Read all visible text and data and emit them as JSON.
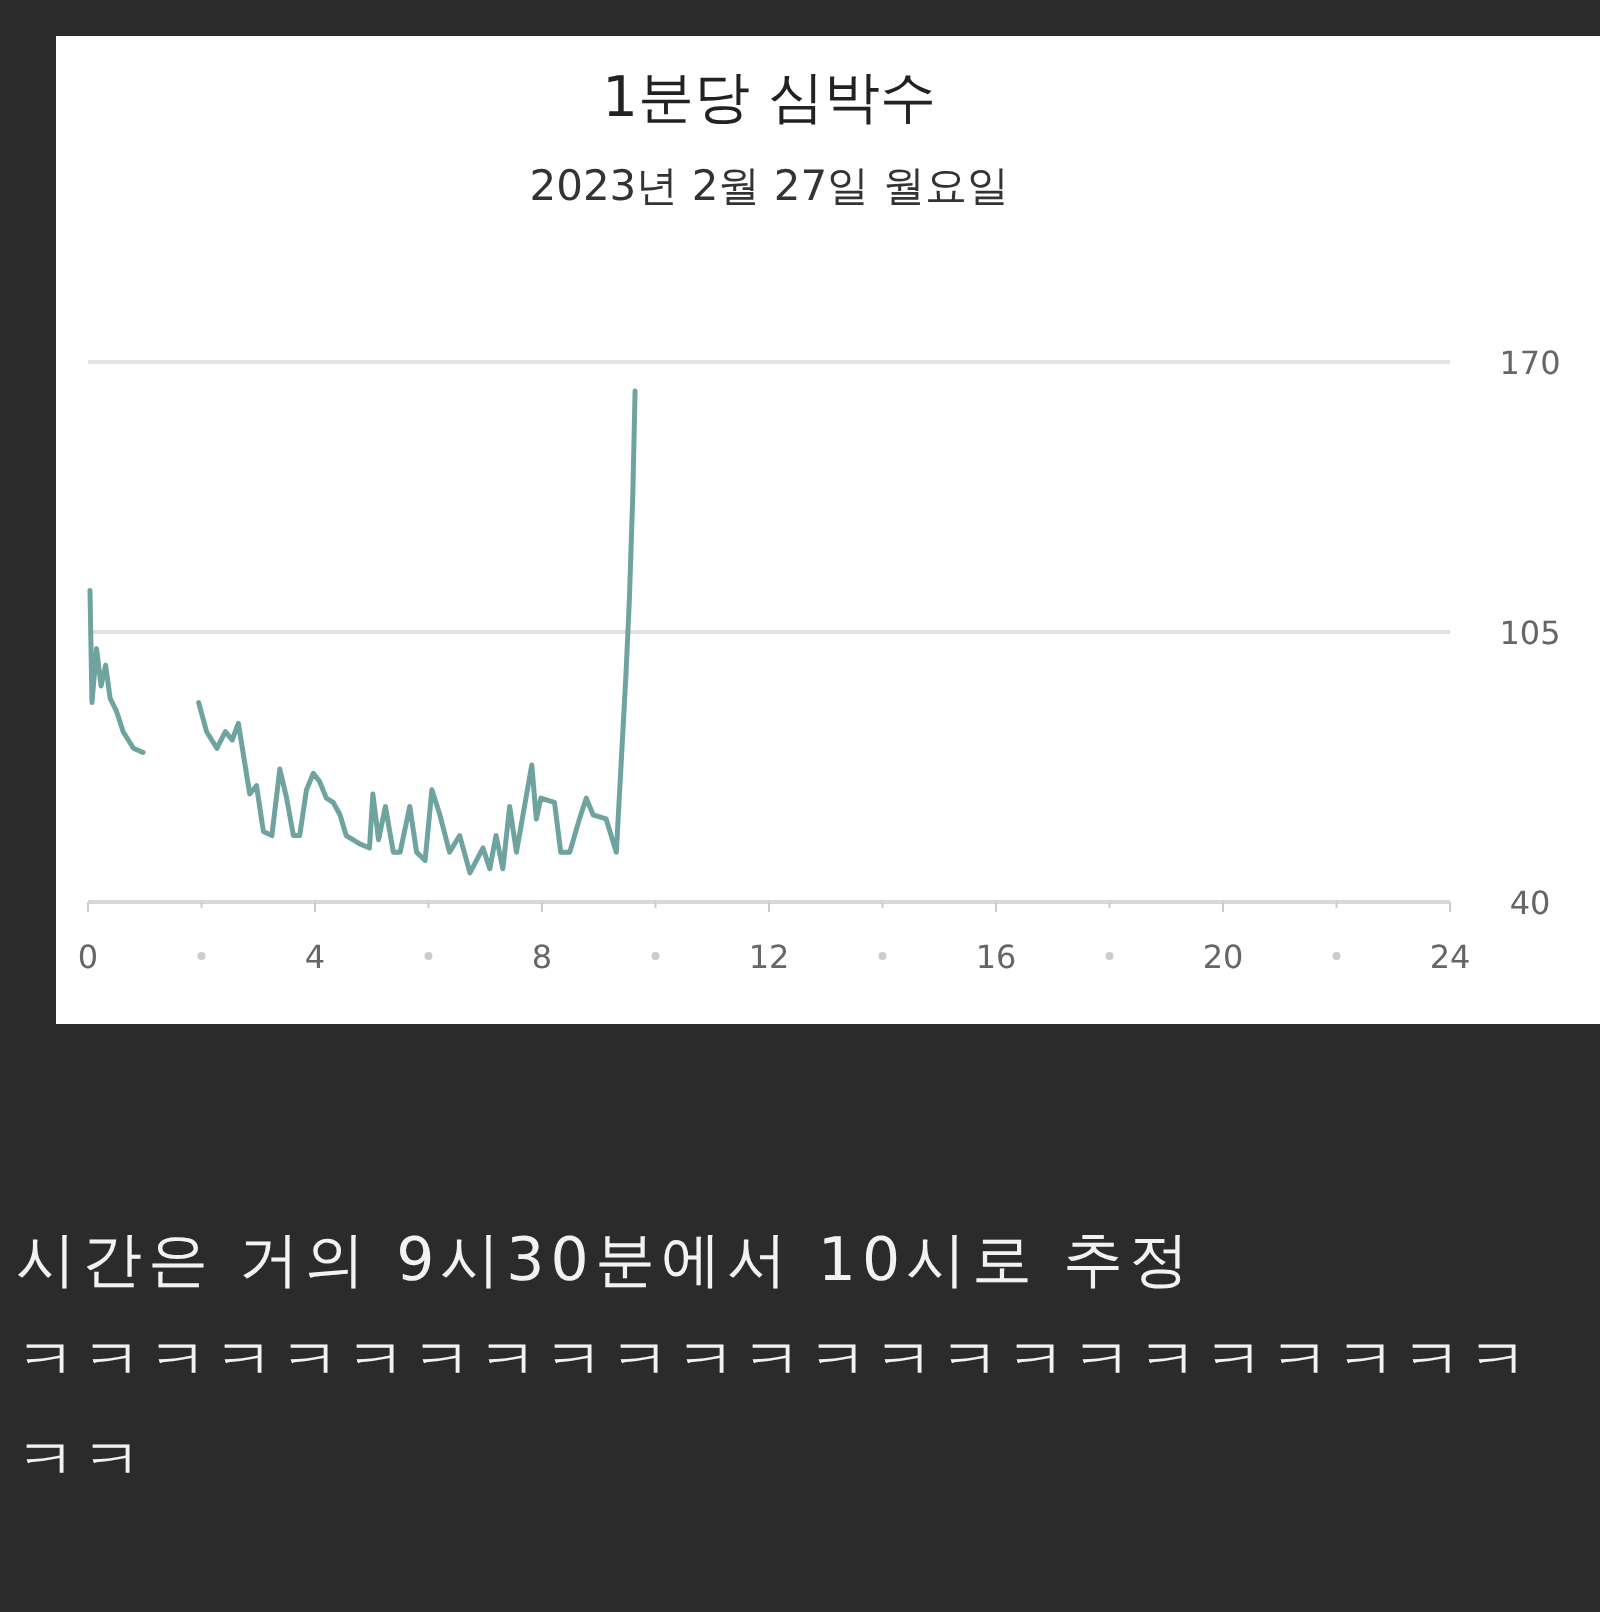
{
  "chart_data": {
    "type": "line",
    "title": "1분당 심박수",
    "subtitle": "2023년 2월 27일 월요일",
    "series": [
      {
        "color": "#6fa3a0",
        "x": [
          0.035,
          0.07,
          0.15,
          0.23,
          0.31,
          0.39,
          0.5,
          0.62,
          0.8,
          0.97
        ],
        "values": [
          115,
          88,
          101,
          92,
          97,
          89,
          86,
          81,
          77,
          76
        ]
      },
      {
        "color": "#6fa3a0",
        "x": [
          1.95,
          2.09,
          2.27,
          2.42,
          2.54,
          2.65,
          2.85,
          2.97,
          3.09,
          3.24,
          3.38,
          3.5,
          3.62,
          3.73,
          3.85,
          3.97,
          4.08,
          4.2,
          4.32,
          4.44,
          4.55,
          4.79,
          4.96,
          5.02,
          5.12,
          5.24,
          5.38,
          5.5,
          5.67,
          5.79,
          5.94,
          6.06,
          6.2,
          6.37,
          6.55,
          6.73,
          6.96,
          7.08,
          7.19,
          7.31,
          7.43,
          7.55,
          7.82,
          7.9,
          7.98,
          8.22,
          8.33,
          8.49,
          8.66,
          8.78,
          8.9,
          9.13,
          9.31,
          9.48,
          9.54,
          9.6,
          9.64
        ],
        "values": [
          88,
          81,
          77,
          81,
          79,
          83,
          66,
          68,
          57,
          56,
          72,
          65,
          56,
          56,
          67,
          71,
          69,
          65,
          64,
          61,
          56,
          54,
          53,
          66,
          55,
          63,
          52,
          52,
          63,
          52,
          50,
          67,
          61,
          52,
          56,
          47,
          53,
          48,
          56,
          48,
          63,
          52,
          73,
          60,
          65,
          64,
          52,
          52,
          60,
          65,
          61,
          60,
          52,
          95,
          113,
          138,
          163
        ]
      }
    ],
    "xlim": [
      0,
      24
    ],
    "ylim": [
      40,
      170
    ],
    "xticks": [
      0,
      {
        "value": 2,
        "label": null
      },
      4,
      {
        "value": 6,
        "label": null
      },
      8,
      {
        "value": 10,
        "label": null
      },
      12,
      {
        "value": 14,
        "label": null
      },
      16,
      {
        "value": 18,
        "label": null
      },
      20,
      {
        "value": 22,
        "label": null
      },
      24
    ],
    "yticks": [
      40,
      105,
      170
    ],
    "grid": "y",
    "annotations": [
      "시간은 거의 9시30분에서 10시로 추정",
      "ㅋㅋㅋㅋㅋㅋㅋㅋㅋㅋㅋㅋㅋㅋㅋㅋㅋㅋㅋㅋㅋㅋㅋㅋㅋ"
    ]
  }
}
